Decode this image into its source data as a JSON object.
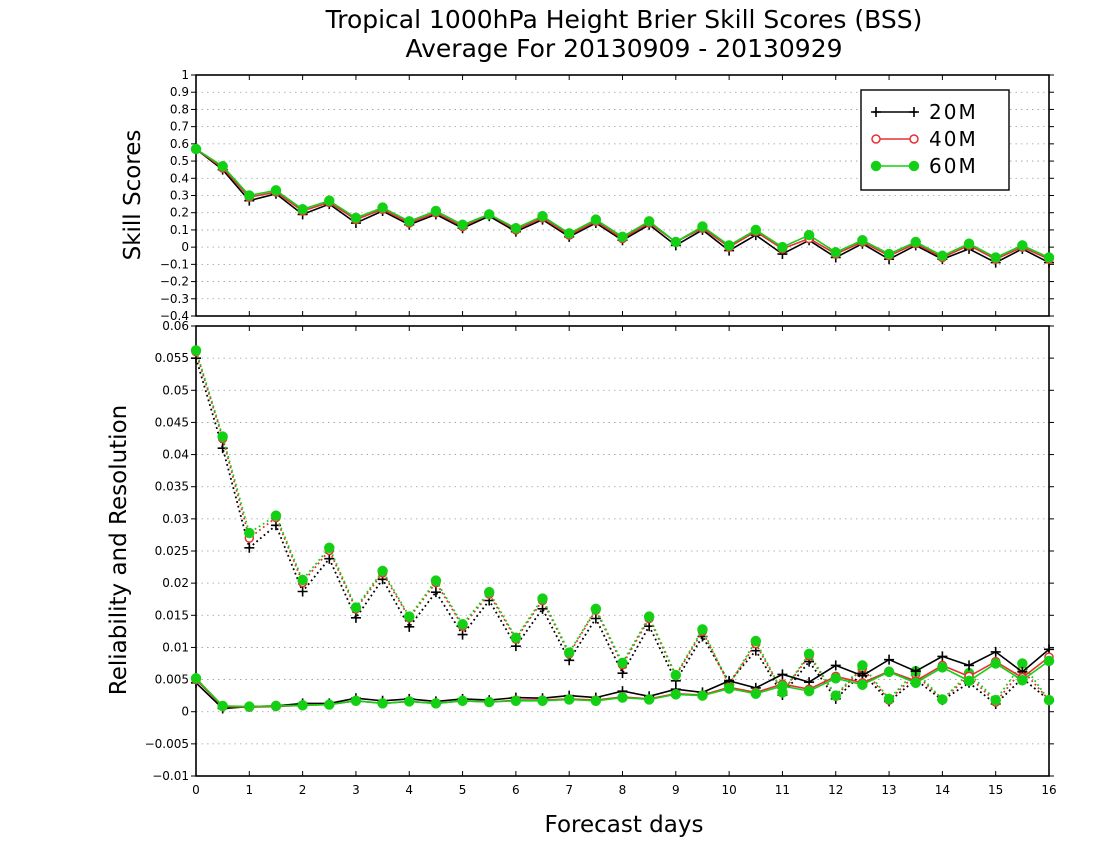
{
  "chart_data": [
    {
      "type": "line",
      "title": "Tropical 1000hPa Height Brier Skill Scores (BSS)",
      "subtitle": "Average For 20130909 - 20130929",
      "xlabel": "Forecast days",
      "ylabel": "Skill Scores",
      "xlim": [
        0,
        16
      ],
      "ylim": [
        -0.4,
        1
      ],
      "x_ticks": [
        "0",
        "1",
        "2",
        "3",
        "4",
        "5",
        "6",
        "7",
        "8",
        "9",
        "10",
        "11",
        "12",
        "13",
        "14",
        "15",
        "16"
      ],
      "y_ticks": [
        "−0.4",
        "−0.3",
        "−0.2",
        "−0.1",
        "0",
        "0.1",
        "0.2",
        "0.3",
        "0.4",
        "0.5",
        "0.6",
        "0.7",
        "0.8",
        "0.9",
        "1"
      ],
      "grid": true,
      "legend_position": "top-right",
      "x": [
        0,
        0.5,
        1,
        1.5,
        2,
        2.5,
        3,
        3.5,
        4,
        4.5,
        5,
        5.5,
        6,
        6.5,
        7,
        7.5,
        8,
        8.5,
        9,
        9.5,
        10,
        10.5,
        11,
        11.5,
        12,
        12.5,
        13,
        13.5,
        14,
        14.5,
        15,
        15.5,
        16
      ],
      "series": [
        {
          "name": "20M",
          "color": "#000000",
          "marker": "plus",
          "values": [
            0.57,
            0.45,
            0.27,
            0.31,
            0.19,
            0.25,
            0.14,
            0.21,
            0.13,
            0.19,
            0.11,
            0.18,
            0.09,
            0.16,
            0.06,
            0.14,
            0.04,
            0.13,
            0.01,
            0.1,
            -0.02,
            0.07,
            -0.04,
            0.04,
            -0.06,
            0.02,
            -0.07,
            0.01,
            -0.07,
            -0.01,
            -0.09,
            -0.01,
            -0.09
          ]
        },
        {
          "name": "40M",
          "color": "#e83030",
          "marker": "open-circle",
          "values": [
            0.57,
            0.46,
            0.29,
            0.32,
            0.21,
            0.26,
            0.16,
            0.22,
            0.14,
            0.2,
            0.12,
            0.19,
            0.1,
            0.17,
            0.07,
            0.15,
            0.05,
            0.14,
            0.03,
            0.11,
            0,
            0.09,
            -0.01,
            0.05,
            -0.04,
            0.03,
            -0.05,
            0.02,
            -0.06,
            0.01,
            -0.07,
            0,
            -0.07
          ]
        },
        {
          "name": "60M",
          "color": "#14d014",
          "marker": "filled-circle",
          "values": [
            0.57,
            0.47,
            0.3,
            0.33,
            0.22,
            0.27,
            0.17,
            0.23,
            0.15,
            0.21,
            0.13,
            0.19,
            0.11,
            0.18,
            0.08,
            0.16,
            0.06,
            0.15,
            0.03,
            0.12,
            0.01,
            0.1,
            0,
            0.07,
            -0.03,
            0.04,
            -0.04,
            0.03,
            -0.05,
            0.02,
            -0.06,
            0.01,
            -0.06
          ]
        }
      ]
    },
    {
      "type": "line",
      "xlabel": "Forecast days",
      "ylabel": "Reliability and Resolution",
      "xlim": [
        0,
        16
      ],
      "ylim": [
        -0.01,
        0.06
      ],
      "x_ticks": [
        "0",
        "1",
        "2",
        "3",
        "4",
        "5",
        "6",
        "7",
        "8",
        "9",
        "10",
        "11",
        "12",
        "13",
        "14",
        "15",
        "16"
      ],
      "y_ticks": [
        "−0.01",
        "−0.005",
        "0",
        "0.005",
        "0.01",
        "0.015",
        "0.02",
        "0.025",
        "0.03",
        "0.035",
        "0.04",
        "0.045",
        "0.05",
        "0.055",
        "0.06"
      ],
      "grid": true,
      "x": [
        0,
        0.5,
        1,
        1.5,
        2,
        2.5,
        3,
        3.5,
        4,
        4.5,
        5,
        5.5,
        6,
        6.5,
        7,
        7.5,
        8,
        8.5,
        9,
        9.5,
        10,
        10.5,
        11,
        11.5,
        12,
        12.5,
        13,
        13.5,
        14,
        14.5,
        15,
        15.5,
        16
      ],
      "series": [
        {
          "group": "resolution",
          "color": "#000000",
          "marker": "plus",
          "style": "dotted",
          "values": [
            0.055,
            0.041,
            0.0255,
            0.029,
            0.0187,
            0.0238,
            0.0146,
            0.0206,
            0.0132,
            0.0186,
            0.012,
            0.0173,
            0.0102,
            0.016,
            0.008,
            0.0145,
            0.006,
            0.0133,
            0.0048,
            0.0117,
            0.0046,
            0.0095,
            0.0026,
            0.0078,
            0.002,
            0.006,
            0.0016,
            0.005,
            0.0018,
            0.0045,
            0.0012,
            0.0052,
            0.0018
          ]
        },
        {
          "group": "resolution",
          "color": "#e83030",
          "marker": "open-circle",
          "style": "dotted",
          "values": [
            0.056,
            0.0425,
            0.027,
            0.0302,
            0.0201,
            0.0251,
            0.016,
            0.0216,
            0.0146,
            0.0201,
            0.0133,
            0.0183,
            0.0113,
            0.0173,
            0.009,
            0.0158,
            0.0073,
            0.0145,
            0.0056,
            0.0125,
            0.0042,
            0.0106,
            0.003,
            0.0087,
            0.0024,
            0.0068,
            0.0018,
            0.0058,
            0.0019,
            0.0055,
            0.0015,
            0.0065,
            0.0018
          ]
        },
        {
          "group": "resolution",
          "color": "#14d014",
          "marker": "filled-circle",
          "style": "dotted",
          "values": [
            0.0562,
            0.0428,
            0.0278,
            0.0305,
            0.0205,
            0.0255,
            0.0162,
            0.0219,
            0.0148,
            0.0204,
            0.0136,
            0.0186,
            0.0115,
            0.0176,
            0.0092,
            0.016,
            0.0076,
            0.0148,
            0.0057,
            0.0128,
            0.0042,
            0.011,
            0.003,
            0.009,
            0.0025,
            0.0072,
            0.002,
            0.0063,
            0.0019,
            0.006,
            0.0018,
            0.0075,
            0.0018
          ]
        },
        {
          "group": "reliability",
          "color": "#000000",
          "marker": "plus",
          "style": "solid",
          "values": [
            0.0045,
            0.0005,
            0.0008,
            0.0009,
            0.0013,
            0.0013,
            0.0021,
            0.0017,
            0.002,
            0.0016,
            0.002,
            0.0018,
            0.0022,
            0.0021,
            0.0025,
            0.0022,
            0.0032,
            0.0024,
            0.0035,
            0.003,
            0.0048,
            0.0037,
            0.0058,
            0.0046,
            0.0072,
            0.0056,
            0.0081,
            0.0063,
            0.0086,
            0.0072,
            0.0093,
            0.0062,
            0.0097
          ]
        },
        {
          "group": "reliability",
          "color": "#e83030",
          "marker": "open-circle",
          "style": "solid",
          "values": [
            0.005,
            0.0008,
            0.0007,
            0.0008,
            0.001,
            0.0011,
            0.0017,
            0.0013,
            0.0016,
            0.0013,
            0.0017,
            0.0015,
            0.0018,
            0.0018,
            0.002,
            0.0018,
            0.0023,
            0.002,
            0.0028,
            0.0026,
            0.0038,
            0.003,
            0.0043,
            0.0035,
            0.0055,
            0.0045,
            0.0063,
            0.0048,
            0.0072,
            0.0055,
            0.0078,
            0.0053,
            0.0085
          ]
        },
        {
          "group": "reliability",
          "color": "#14d014",
          "marker": "filled-circle",
          "style": "solid",
          "values": [
            0.0052,
            0.0009,
            0.0008,
            0.0009,
            0.001,
            0.0011,
            0.0017,
            0.0013,
            0.0016,
            0.0013,
            0.0017,
            0.0015,
            0.0017,
            0.0017,
            0.0019,
            0.0017,
            0.0022,
            0.0019,
            0.0027,
            0.0025,
            0.0036,
            0.0028,
            0.004,
            0.0032,
            0.0052,
            0.0042,
            0.0062,
            0.0045,
            0.0069,
            0.0048,
            0.0075,
            0.0049,
            0.0079
          ]
        }
      ]
    }
  ]
}
